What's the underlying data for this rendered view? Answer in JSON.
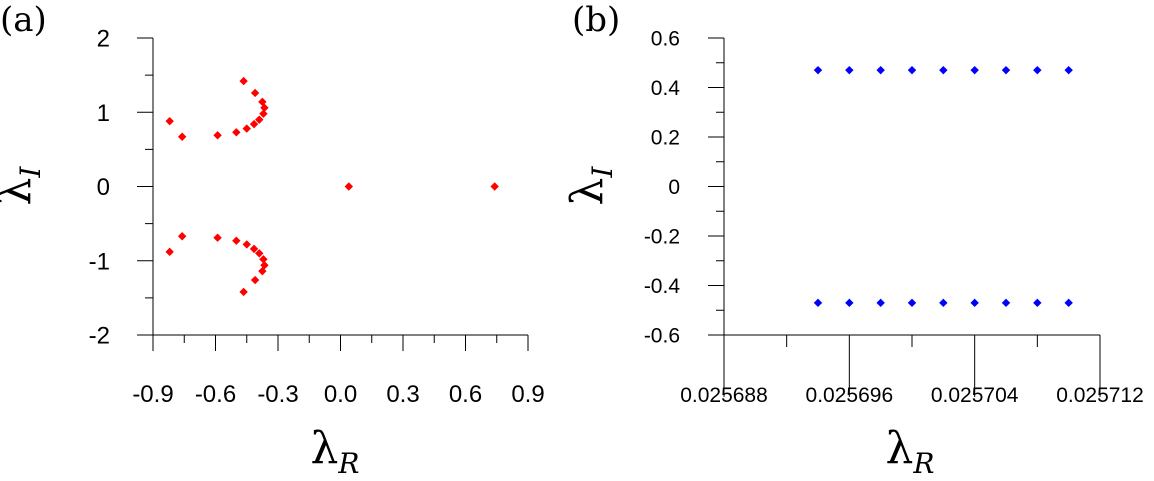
{
  "chart_data": [
    {
      "panel": "(a)",
      "type": "scatter",
      "xlabel": {
        "symbol": "λ",
        "subscript": "R"
      },
      "ylabel": {
        "symbol": "λ",
        "subscript": "I"
      },
      "xlim": [
        -0.9,
        0.9
      ],
      "ylim": [
        -2,
        2
      ],
      "xticks": [
        -0.9,
        -0.6,
        -0.3,
        0.0,
        0.3,
        0.6,
        0.9
      ],
      "xtick_labels": [
        "-0.9",
        "-0.6",
        "-0.3",
        "0.0",
        "0.3",
        "0.6",
        "0.9"
      ],
      "yticks": [
        -2,
        -1,
        0,
        1,
        2
      ],
      "ytick_labels": [
        "-2",
        "-1",
        "0",
        "1",
        "2"
      ],
      "color": "#ff0000",
      "marker": "diamond",
      "grid": false,
      "points": [
        [
          -0.465,
          1.42
        ],
        [
          -0.41,
          1.26
        ],
        [
          -0.375,
          1.14
        ],
        [
          -0.365,
          1.06
        ],
        [
          -0.37,
          0.98
        ],
        [
          -0.39,
          0.9
        ],
        [
          -0.415,
          0.84
        ],
        [
          -0.45,
          0.78
        ],
        [
          -0.5,
          0.73
        ],
        [
          -0.59,
          0.69
        ],
        [
          -0.76,
          0.67
        ],
        [
          -0.82,
          0.88
        ],
        [
          -0.465,
          -1.42
        ],
        [
          -0.41,
          -1.26
        ],
        [
          -0.375,
          -1.14
        ],
        [
          -0.365,
          -1.06
        ],
        [
          -0.37,
          -0.98
        ],
        [
          -0.39,
          -0.9
        ],
        [
          -0.415,
          -0.84
        ],
        [
          -0.45,
          -0.78
        ],
        [
          -0.5,
          -0.73
        ],
        [
          -0.59,
          -0.69
        ],
        [
          -0.76,
          -0.67
        ],
        [
          -0.82,
          -0.88
        ],
        [
          0.04,
          0.0
        ],
        [
          0.74,
          0.0
        ]
      ]
    },
    {
      "panel": "(b)",
      "type": "scatter",
      "xlabel": {
        "symbol": "λ",
        "subscript": "R"
      },
      "ylabel": {
        "symbol": "λ",
        "subscript": "I"
      },
      "xlim": [
        0.025688,
        0.025712
      ],
      "ylim": [
        -0.6,
        0.6
      ],
      "xticks": [
        0.025688,
        0.025696,
        0.025704,
        0.025712
      ],
      "xtick_labels": [
        "0.025688",
        "0.025696",
        "0.025704",
        "0.025712"
      ],
      "x_minor_step": 4e-06,
      "yticks": [
        -0.6,
        -0.4,
        -0.2,
        0,
        0.2,
        0.4,
        0.6
      ],
      "ytick_labels": [
        "-0.6",
        "-0.4",
        "-0.2",
        "0",
        "0.2",
        "0.4",
        "0.6"
      ],
      "y_minor_step": 0.1,
      "color": "#0000ff",
      "marker": "diamond",
      "grid": false,
      "points": [
        [
          0.025694,
          0.47
        ],
        [
          0.025696,
          0.47
        ],
        [
          0.025698,
          0.47
        ],
        [
          0.0257,
          0.47
        ],
        [
          0.025702,
          0.47
        ],
        [
          0.025704,
          0.47
        ],
        [
          0.025706,
          0.47
        ],
        [
          0.025708,
          0.47
        ],
        [
          0.02571,
          0.47
        ],
        [
          0.025694,
          -0.47
        ],
        [
          0.025696,
          -0.47
        ],
        [
          0.025698,
          -0.47
        ],
        [
          0.0257,
          -0.47
        ],
        [
          0.025702,
          -0.47
        ],
        [
          0.025704,
          -0.47
        ],
        [
          0.025706,
          -0.47
        ],
        [
          0.025708,
          -0.47
        ],
        [
          0.02571,
          -0.47
        ]
      ]
    }
  ]
}
